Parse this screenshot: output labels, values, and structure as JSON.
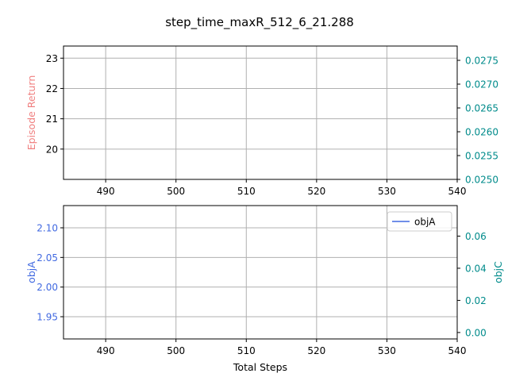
{
  "title": "step_time_maxR_512_6_21.288",
  "colors": {
    "episode_return": "#f08080",
    "objA": "#4169e1",
    "objC": "#008b8b",
    "grid": "#b0b0b0",
    "axis": "#000000"
  },
  "chart_data": [
    {
      "type": "line",
      "xlim": [
        484,
        540
      ],
      "x_ticks": [
        "490",
        "500",
        "510",
        "520",
        "530",
        "540"
      ],
      "grid": true,
      "left_axis": {
        "label": "Episode Return",
        "ylim": [
          19.0,
          23.4
        ],
        "ticks": [
          "20",
          "21",
          "22",
          "23"
        ],
        "tick_values": [
          20,
          21,
          22,
          23
        ]
      },
      "right_axis": {
        "label": "",
        "ylim": [
          0.025,
          0.0278
        ],
        "ticks": [
          "0.0250",
          "0.0255",
          "0.0260",
          "0.0265",
          "0.0270",
          "0.0275"
        ],
        "tick_values": [
          0.025,
          0.0255,
          0.026,
          0.0265,
          0.027,
          0.0275
        ]
      },
      "series": []
    },
    {
      "type": "line",
      "xlim": [
        484,
        540
      ],
      "x_ticks": [
        "490",
        "500",
        "510",
        "520",
        "530",
        "540"
      ],
      "xlabel": "Total Steps",
      "grid": true,
      "legend": {
        "position": "top-right",
        "entries": [
          "objA"
        ]
      },
      "left_axis": {
        "label": "objA",
        "ylim": [
          1.9125,
          2.1375
        ],
        "ticks": [
          "1.95",
          "2.00",
          "2.05",
          "2.10"
        ],
        "tick_values": [
          1.95,
          2.0,
          2.05,
          2.1
        ]
      },
      "right_axis": {
        "label": "objC",
        "ylim": [
          -0.004,
          0.079
        ],
        "ticks": [
          "0.00",
          "0.02",
          "0.04",
          "0.06"
        ],
        "tick_values": [
          0.0,
          0.02,
          0.04,
          0.06
        ]
      },
      "series": [
        {
          "name": "objA",
          "x": [],
          "y": []
        }
      ]
    }
  ]
}
